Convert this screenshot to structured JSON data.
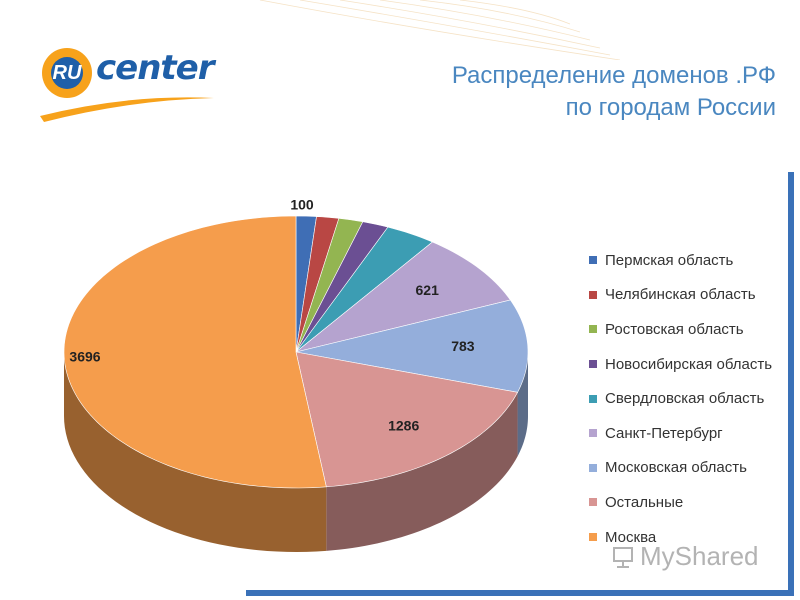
{
  "header": {
    "logo_text": "RU center",
    "title_line1": "Распределение доменов .РФ",
    "title_line2": "по городам России"
  },
  "colors": {
    "title": "#4a87c0",
    "brand_blue": "#1f5fa8",
    "brand_orange": "#f7a21b",
    "frame_blue": "#3a71b8"
  },
  "chart_data": {
    "type": "pie",
    "title": "Распределение доменов .РФ по городам России",
    "categories": [
      "Пермская область",
      "Челябинская область",
      "Ростовская область",
      "Новосибирская область",
      "Свердловская область",
      "Санкт-Петербург",
      "Московская область",
      "Остальные",
      "Москва"
    ],
    "values": [
      100,
      110,
      120,
      130,
      250,
      621,
      783,
      1286,
      3696
    ],
    "data_labels": [
      "100",
      "",
      "",
      "",
      "",
      "621",
      "783",
      "1286",
      "3696"
    ],
    "colors": [
      "#3f6eb5",
      "#b94744",
      "#93b551",
      "#6b4f93",
      "#3c9db3",
      "#b5a3cf",
      "#94aedb",
      "#d89593",
      "#f59d4c"
    ],
    "style": "3d",
    "legend_position": "right"
  },
  "watermark": {
    "text": "MyShared"
  }
}
